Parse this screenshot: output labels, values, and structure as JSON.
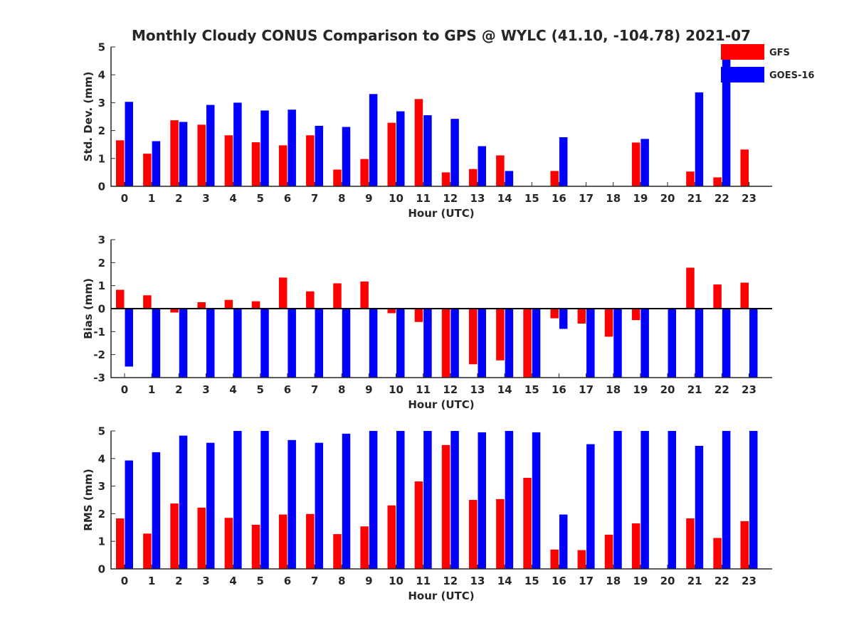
{
  "title": "Monthly Cloudy CONUS Comparison to GPS @ WYLC (41.10, -104.78) 2021-07",
  "legend": {
    "placement": "top-right",
    "entries": [
      {
        "name": "GFS",
        "color": "#ff0000"
      },
      {
        "name": "GOES-16",
        "color": "#0000ff"
      }
    ]
  },
  "chart_data": [
    {
      "type": "bar",
      "xlabel": "Hour (UTC)",
      "ylabel": "Std. Dev. (mm)",
      "ylim": [
        0,
        5
      ],
      "yticks": [
        0,
        1,
        2,
        3,
        4,
        5
      ],
      "categories": [
        "0",
        "1",
        "2",
        "3",
        "4",
        "5",
        "6",
        "7",
        "8",
        "9",
        "10",
        "11",
        "12",
        "13",
        "14",
        "15",
        "16",
        "17",
        "18",
        "19",
        "20",
        "21",
        "22",
        "23"
      ],
      "series": [
        {
          "name": "GFS",
          "color": "#ff0000",
          "values": [
            1.65,
            1.17,
            2.37,
            2.21,
            1.83,
            1.58,
            1.47,
            1.83,
            0.6,
            0.98,
            2.28,
            3.13,
            0.5,
            0.62,
            1.11,
            null,
            0.55,
            null,
            null,
            1.57,
            null,
            0.53,
            0.32,
            1.32
          ]
        },
        {
          "name": "GOES-16",
          "color": "#0000ff",
          "values": [
            3.03,
            1.62,
            2.31,
            2.92,
            3.0,
            2.72,
            2.75,
            2.17,
            2.13,
            3.31,
            2.69,
            2.55,
            2.42,
            1.44,
            0.55,
            null,
            1.76,
            null,
            null,
            1.7,
            null,
            3.37,
            4.78,
            null
          ]
        }
      ]
    },
    {
      "type": "bar",
      "xlabel": "Hour (UTC)",
      "ylabel": "Bias (mm)",
      "ylim": [
        -3,
        3
      ],
      "yticks": [
        -3,
        -2,
        -1,
        0,
        1,
        2,
        3
      ],
      "categories": [
        "0",
        "1",
        "2",
        "3",
        "4",
        "5",
        "6",
        "7",
        "8",
        "9",
        "10",
        "11",
        "12",
        "13",
        "14",
        "15",
        "16",
        "17",
        "18",
        "19",
        "20",
        "21",
        "22",
        "23"
      ],
      "series": [
        {
          "name": "GFS",
          "color": "#ff0000",
          "values": [
            0.82,
            0.58,
            -0.17,
            0.28,
            0.38,
            0.32,
            1.35,
            0.75,
            1.1,
            1.18,
            -0.2,
            -0.58,
            -3.0,
            -2.42,
            -2.25,
            -3.0,
            -0.42,
            -0.65,
            -1.22,
            -0.5,
            null,
            1.78,
            1.05,
            1.13
          ]
        },
        {
          "name": "GOES-16",
          "color": "#0000ff",
          "values": [
            -2.52,
            -3.0,
            -3.0,
            -3.0,
            -3.0,
            -3.0,
            -3.0,
            -3.0,
            -3.0,
            -3.0,
            -3.0,
            -3.0,
            -3.0,
            -3.0,
            -3.0,
            -3.0,
            -0.88,
            -3.0,
            -3.0,
            -3.0,
            -3.0,
            -3.0,
            -3.0,
            -3.0
          ]
        }
      ]
    },
    {
      "type": "bar",
      "xlabel": "Hour (UTC)",
      "ylabel": "RMS (mm)",
      "ylim": [
        0,
        5
      ],
      "yticks": [
        0,
        1,
        2,
        3,
        4,
        5
      ],
      "categories": [
        "0",
        "1",
        "2",
        "3",
        "4",
        "5",
        "6",
        "7",
        "8",
        "9",
        "10",
        "11",
        "12",
        "13",
        "14",
        "15",
        "16",
        "17",
        "18",
        "19",
        "20",
        "21",
        "22",
        "23"
      ],
      "series": [
        {
          "name": "GFS",
          "color": "#ff0000",
          "values": [
            1.83,
            1.28,
            2.37,
            2.22,
            1.85,
            1.6,
            1.97,
            1.99,
            1.26,
            1.54,
            2.3,
            3.17,
            4.49,
            2.5,
            2.53,
            3.3,
            0.7,
            0.68,
            1.24,
            1.65,
            null,
            1.83,
            1.12,
            1.73
          ]
        },
        {
          "name": "GOES-16",
          "color": "#0000ff",
          "values": [
            3.93,
            4.23,
            4.83,
            4.57,
            5.0,
            5.0,
            4.67,
            4.57,
            4.9,
            5.0,
            5.0,
            5.0,
            5.0,
            4.95,
            5.0,
            4.95,
            1.97,
            4.52,
            5.0,
            5.0,
            5.0,
            4.46,
            5.0,
            5.0
          ]
        }
      ]
    }
  ]
}
